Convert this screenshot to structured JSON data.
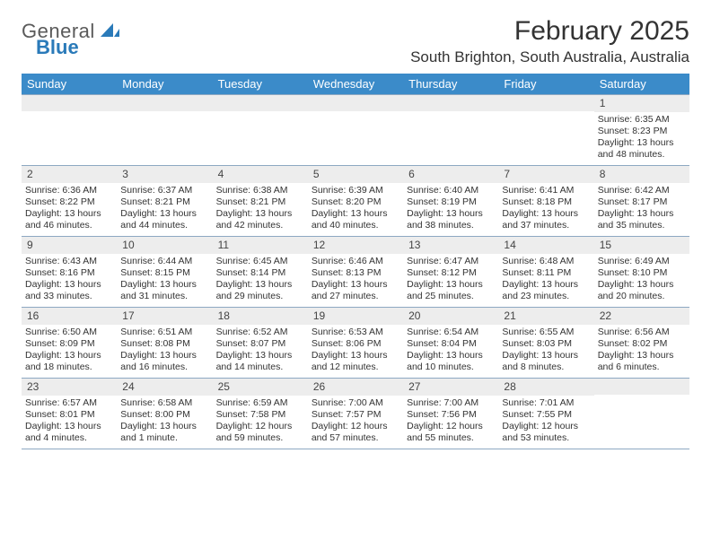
{
  "brand": {
    "name_top": "General",
    "name_bottom": "Blue"
  },
  "title": {
    "month": "February 2025",
    "location": "South Brighton, South Australia, Australia"
  },
  "colors": {
    "header_bar": "#3b8bc9",
    "daynum_bg": "#ededed",
    "rule": "#8da8c2",
    "brand_blue": "#2a7ab9"
  },
  "dow": [
    "Sunday",
    "Monday",
    "Tuesday",
    "Wednesday",
    "Thursday",
    "Friday",
    "Saturday"
  ],
  "weeks": [
    [
      {
        "n": "",
        "lines": []
      },
      {
        "n": "",
        "lines": []
      },
      {
        "n": "",
        "lines": []
      },
      {
        "n": "",
        "lines": []
      },
      {
        "n": "",
        "lines": []
      },
      {
        "n": "",
        "lines": []
      },
      {
        "n": "1",
        "lines": [
          "Sunrise: 6:35 AM",
          "Sunset: 8:23 PM",
          "Daylight: 13 hours and 48 minutes."
        ]
      }
    ],
    [
      {
        "n": "2",
        "lines": [
          "Sunrise: 6:36 AM",
          "Sunset: 8:22 PM",
          "Daylight: 13 hours and 46 minutes."
        ]
      },
      {
        "n": "3",
        "lines": [
          "Sunrise: 6:37 AM",
          "Sunset: 8:21 PM",
          "Daylight: 13 hours and 44 minutes."
        ]
      },
      {
        "n": "4",
        "lines": [
          "Sunrise: 6:38 AM",
          "Sunset: 8:21 PM",
          "Daylight: 13 hours and 42 minutes."
        ]
      },
      {
        "n": "5",
        "lines": [
          "Sunrise: 6:39 AM",
          "Sunset: 8:20 PM",
          "Daylight: 13 hours and 40 minutes."
        ]
      },
      {
        "n": "6",
        "lines": [
          "Sunrise: 6:40 AM",
          "Sunset: 8:19 PM",
          "Daylight: 13 hours and 38 minutes."
        ]
      },
      {
        "n": "7",
        "lines": [
          "Sunrise: 6:41 AM",
          "Sunset: 8:18 PM",
          "Daylight: 13 hours and 37 minutes."
        ]
      },
      {
        "n": "8",
        "lines": [
          "Sunrise: 6:42 AM",
          "Sunset: 8:17 PM",
          "Daylight: 13 hours and 35 minutes."
        ]
      }
    ],
    [
      {
        "n": "9",
        "lines": [
          "Sunrise: 6:43 AM",
          "Sunset: 8:16 PM",
          "Daylight: 13 hours and 33 minutes."
        ]
      },
      {
        "n": "10",
        "lines": [
          "Sunrise: 6:44 AM",
          "Sunset: 8:15 PM",
          "Daylight: 13 hours and 31 minutes."
        ]
      },
      {
        "n": "11",
        "lines": [
          "Sunrise: 6:45 AM",
          "Sunset: 8:14 PM",
          "Daylight: 13 hours and 29 minutes."
        ]
      },
      {
        "n": "12",
        "lines": [
          "Sunrise: 6:46 AM",
          "Sunset: 8:13 PM",
          "Daylight: 13 hours and 27 minutes."
        ]
      },
      {
        "n": "13",
        "lines": [
          "Sunrise: 6:47 AM",
          "Sunset: 8:12 PM",
          "Daylight: 13 hours and 25 minutes."
        ]
      },
      {
        "n": "14",
        "lines": [
          "Sunrise: 6:48 AM",
          "Sunset: 8:11 PM",
          "Daylight: 13 hours and 23 minutes."
        ]
      },
      {
        "n": "15",
        "lines": [
          "Sunrise: 6:49 AM",
          "Sunset: 8:10 PM",
          "Daylight: 13 hours and 20 minutes."
        ]
      }
    ],
    [
      {
        "n": "16",
        "lines": [
          "Sunrise: 6:50 AM",
          "Sunset: 8:09 PM",
          "Daylight: 13 hours and 18 minutes."
        ]
      },
      {
        "n": "17",
        "lines": [
          "Sunrise: 6:51 AM",
          "Sunset: 8:08 PM",
          "Daylight: 13 hours and 16 minutes."
        ]
      },
      {
        "n": "18",
        "lines": [
          "Sunrise: 6:52 AM",
          "Sunset: 8:07 PM",
          "Daylight: 13 hours and 14 minutes."
        ]
      },
      {
        "n": "19",
        "lines": [
          "Sunrise: 6:53 AM",
          "Sunset: 8:06 PM",
          "Daylight: 13 hours and 12 minutes."
        ]
      },
      {
        "n": "20",
        "lines": [
          "Sunrise: 6:54 AM",
          "Sunset: 8:04 PM",
          "Daylight: 13 hours and 10 minutes."
        ]
      },
      {
        "n": "21",
        "lines": [
          "Sunrise: 6:55 AM",
          "Sunset: 8:03 PM",
          "Daylight: 13 hours and 8 minutes."
        ]
      },
      {
        "n": "22",
        "lines": [
          "Sunrise: 6:56 AM",
          "Sunset: 8:02 PM",
          "Daylight: 13 hours and 6 minutes."
        ]
      }
    ],
    [
      {
        "n": "23",
        "lines": [
          "Sunrise: 6:57 AM",
          "Sunset: 8:01 PM",
          "Daylight: 13 hours and 4 minutes."
        ]
      },
      {
        "n": "24",
        "lines": [
          "Sunrise: 6:58 AM",
          "Sunset: 8:00 PM",
          "Daylight: 13 hours and 1 minute."
        ]
      },
      {
        "n": "25",
        "lines": [
          "Sunrise: 6:59 AM",
          "Sunset: 7:58 PM",
          "Daylight: 12 hours and 59 minutes."
        ]
      },
      {
        "n": "26",
        "lines": [
          "Sunrise: 7:00 AM",
          "Sunset: 7:57 PM",
          "Daylight: 12 hours and 57 minutes."
        ]
      },
      {
        "n": "27",
        "lines": [
          "Sunrise: 7:00 AM",
          "Sunset: 7:56 PM",
          "Daylight: 12 hours and 55 minutes."
        ]
      },
      {
        "n": "28",
        "lines": [
          "Sunrise: 7:01 AM",
          "Sunset: 7:55 PM",
          "Daylight: 12 hours and 53 minutes."
        ]
      },
      {
        "n": "",
        "lines": []
      }
    ]
  ]
}
